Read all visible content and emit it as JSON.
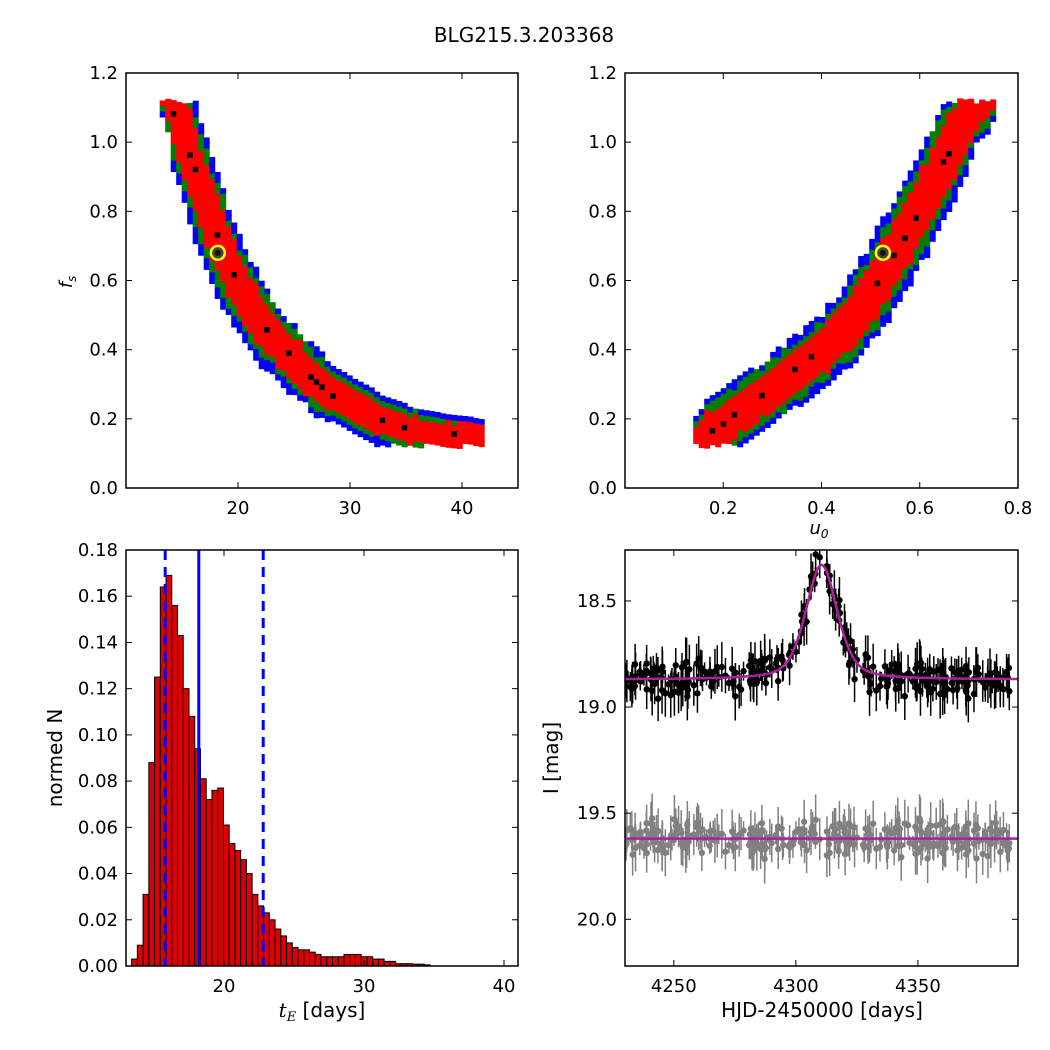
{
  "figure": {
    "title": "BLG215.3.203368"
  },
  "colors": {
    "sigma3": "#0000ff",
    "sigma2": "#008000",
    "sigma1": "#ff0000",
    "best": "#000000",
    "marker_edge": "#ffff00",
    "hist_bar": "#dd0000",
    "median_line": "#0000ff",
    "model": "#aa2299",
    "data_main": "#000000",
    "data_resid": "#808080"
  },
  "chart_data": [
    {
      "type": "heatmap",
      "panel": "top-left",
      "xlabel": "",
      "ylabel": "f_s",
      "xlim": [
        10,
        45
      ],
      "ylim": [
        0.0,
        1.2
      ],
      "xticks": [
        "20",
        "30",
        "40"
      ],
      "yticks": [
        "0.0",
        "0.2",
        "0.4",
        "0.6",
        "0.8",
        "1.0",
        "1.2"
      ],
      "ridge": [
        [
          13.5,
          1.14
        ],
        [
          14.6,
          1.05
        ],
        [
          15.4,
          0.98
        ],
        [
          16.2,
          0.9
        ],
        [
          17.0,
          0.82
        ],
        [
          17.8,
          0.75
        ],
        [
          18.6,
          0.68
        ],
        [
          19.6,
          0.61
        ],
        [
          20.8,
          0.54
        ],
        [
          22.2,
          0.47
        ],
        [
          23.8,
          0.41
        ],
        [
          25.6,
          0.35
        ],
        [
          27.6,
          0.29
        ],
        [
          29.8,
          0.25
        ],
        [
          32.2,
          0.21
        ],
        [
          35.0,
          0.18
        ],
        [
          38.0,
          0.165
        ],
        [
          41.0,
          0.155
        ]
      ],
      "confidence_levels": [
        "3-sigma",
        "2-sigma",
        "1-sigma",
        "best"
      ],
      "best_fit": {
        "x": 18.2,
        "y": 0.68
      }
    },
    {
      "type": "heatmap",
      "panel": "top-right",
      "xlabel": "u_0",
      "ylabel": "",
      "xlim": [
        0.0,
        0.8
      ],
      "ylim": [
        0.0,
        1.2
      ],
      "xticks": [
        "0.2",
        "0.4",
        "0.6",
        "0.8"
      ],
      "yticks": [
        "0.0",
        "0.2",
        "0.4",
        "0.6",
        "0.8",
        "1.0",
        "1.2"
      ],
      "ridge": [
        [
          0.15,
          0.155
        ],
        [
          0.2,
          0.2
        ],
        [
          0.25,
          0.25
        ],
        [
          0.3,
          0.3
        ],
        [
          0.35,
          0.355
        ],
        [
          0.4,
          0.41
        ],
        [
          0.45,
          0.48
        ],
        [
          0.5,
          0.58
        ],
        [
          0.55,
          0.7
        ],
        [
          0.6,
          0.83
        ],
        [
          0.65,
          0.97
        ],
        [
          0.7,
          1.1
        ],
        [
          0.74,
          1.14
        ]
      ],
      "confidence_levels": [
        "3-sigma",
        "2-sigma",
        "1-sigma",
        "best"
      ],
      "best_fit": {
        "x": 0.525,
        "y": 0.68
      }
    },
    {
      "type": "bar",
      "panel": "bottom-left",
      "xlabel": "t_E [days]",
      "ylabel": "normed N",
      "xlim": [
        13,
        41
      ],
      "ylim": [
        0.0,
        0.18
      ],
      "xticks": [
        "20",
        "30",
        "40"
      ],
      "yticks": [
        "0.00",
        "0.02",
        "0.04",
        "0.06",
        "0.08",
        "0.10",
        "0.12",
        "0.14",
        "0.16",
        "0.18"
      ],
      "bin_start": 13.4,
      "bin_width": 0.41,
      "values": [
        0.003,
        0.009,
        0.031,
        0.088,
        0.125,
        0.164,
        0.169,
        0.156,
        0.143,
        0.12,
        0.108,
        0.094,
        0.081,
        0.072,
        0.076,
        0.077,
        0.061,
        0.053,
        0.05,
        0.046,
        0.04,
        0.031,
        0.026,
        0.023,
        0.02,
        0.016,
        0.013,
        0.01,
        0.008,
        0.007,
        0.007,
        0.006,
        0.005,
        0.004,
        0.004,
        0.004,
        0.004,
        0.005,
        0.005,
        0.005,
        0.004,
        0.004,
        0.003,
        0.003,
        0.002,
        0.002,
        0.001,
        0.001,
        0.001,
        0.0008,
        0.0008,
        0.0005
      ],
      "median": 18.2,
      "interval": [
        15.8,
        22.8
      ]
    },
    {
      "type": "scatter",
      "panel": "bottom-right",
      "xlabel": "HJD-2450000 [days]",
      "ylabel": "I [mag]",
      "xlim": [
        4230,
        4391
      ],
      "ylim": [
        20.22,
        18.26
      ],
      "y_inverted": true,
      "xticks": [
        "4250",
        "4300",
        "4350"
      ],
      "yticks": [
        "18.5",
        "19.0",
        "19.5",
        "20.0"
      ],
      "series": [
        {
          "role": "main",
          "baseline": 18.87,
          "peak_mag": 18.33,
          "t0": 4310.5,
          "tE": 18.2,
          "u0": 0.525,
          "fs": 0.68
        },
        {
          "role": "residual",
          "baseline": 19.62
        }
      ]
    }
  ]
}
